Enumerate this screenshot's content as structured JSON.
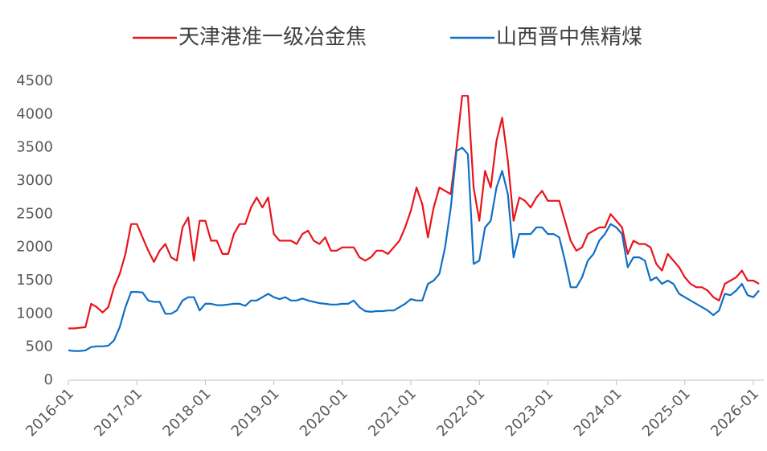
{
  "chart_data": {
    "type": "line",
    "x": [
      "2016-01",
      "2016-02",
      "2016-03",
      "2016-04",
      "2016-05",
      "2016-06",
      "2016-07",
      "2016-08",
      "2016-09",
      "2016-10",
      "2016-11",
      "2016-12",
      "2017-01",
      "2017-02",
      "2017-03",
      "2017-04",
      "2017-05",
      "2017-06",
      "2017-07",
      "2017-08",
      "2017-09",
      "2017-10",
      "2017-11",
      "2017-12",
      "2018-01",
      "2018-02",
      "2018-03",
      "2018-04",
      "2018-05",
      "2018-06",
      "2018-07",
      "2018-08",
      "2018-09",
      "2018-10",
      "2018-11",
      "2018-12",
      "2019-01",
      "2019-02",
      "2019-03",
      "2019-04",
      "2019-05",
      "2019-06",
      "2019-07",
      "2019-08",
      "2019-09",
      "2019-10",
      "2019-11",
      "2019-12",
      "2020-01",
      "2020-02",
      "2020-03",
      "2020-04",
      "2020-05",
      "2020-06",
      "2020-07",
      "2020-08",
      "2020-09",
      "2020-10",
      "2020-11",
      "2020-12",
      "2021-01",
      "2021-02",
      "2021-03",
      "2021-04",
      "2021-05",
      "2021-06",
      "2021-07",
      "2021-08",
      "2021-09",
      "2021-10",
      "2021-11",
      "2021-12",
      "2022-01",
      "2022-02",
      "2022-03",
      "2022-04",
      "2022-05",
      "2022-06",
      "2022-07",
      "2022-08",
      "2022-09",
      "2022-10",
      "2022-11",
      "2022-12",
      "2023-01",
      "2023-02",
      "2023-03",
      "2023-04",
      "2023-05",
      "2023-06",
      "2023-07",
      "2023-08",
      "2023-09",
      "2023-10",
      "2023-11",
      "2023-12",
      "2024-01",
      "2024-02",
      "2024-03",
      "2024-04",
      "2024-05",
      "2024-06",
      "2024-07",
      "2024-08",
      "2024-09",
      "2024-10",
      "2024-11",
      "2024-12",
      "2025-01",
      "2025-02",
      "2025-03",
      "2025-04",
      "2025-05",
      "2025-06",
      "2025-07",
      "2025-08",
      "2025-09",
      "2025-10",
      "2025-11",
      "2025-12",
      "2026-01",
      "2026-02"
    ],
    "xticks": [
      "2016-01",
      "2017-01",
      "2018-01",
      "2019-01",
      "2020-01",
      "2021-01",
      "2022-01",
      "2023-01",
      "2024-01",
      "2025-01",
      "2026-01"
    ],
    "series": [
      {
        "name": "天津港准一级冶金焦",
        "color": "#e8141b",
        "values": [
          780,
          780,
          790,
          800,
          1150,
          1100,
          1020,
          1100,
          1400,
          1600,
          1900,
          2350,
          2350,
          2150,
          1950,
          1780,
          1950,
          2050,
          1850,
          1800,
          2300,
          2450,
          1800,
          2400,
          2400,
          2100,
          2100,
          1900,
          1900,
          2200,
          2350,
          2350,
          2600,
          2750,
          2600,
          2750,
          2200,
          2100,
          2100,
          2100,
          2050,
          2200,
          2250,
          2100,
          2050,
          2150,
          1950,
          1950,
          2000,
          2000,
          2000,
          1850,
          1800,
          1850,
          1950,
          1950,
          1900,
          2000,
          2100,
          2300,
          2550,
          2900,
          2650,
          2150,
          2600,
          2900,
          2850,
          2800,
          3500,
          4280,
          4280,
          2900,
          2400,
          3150,
          2900,
          3600,
          3950,
          3300,
          2400,
          2750,
          2700,
          2600,
          2750,
          2850,
          2700,
          2700,
          2700,
          2400,
          2100,
          1950,
          2000,
          2200,
          2250,
          2300,
          2300,
          2500,
          2400,
          2300,
          1900,
          2100,
          2050,
          2050,
          2000,
          1750,
          1650,
          1900,
          1800,
          1700,
          1550,
          1450,
          1400,
          1400,
          1350,
          1250,
          1200,
          1450,
          1500,
          1550,
          1650,
          1500,
          1500,
          1450
        ]
      },
      {
        "name": "山西晋中焦精煤",
        "color": "#0f6fc6",
        "values": [
          450,
          440,
          440,
          450,
          500,
          510,
          510,
          520,
          600,
          800,
          1100,
          1330,
          1330,
          1320,
          1200,
          1180,
          1180,
          1000,
          1000,
          1050,
          1200,
          1250,
          1250,
          1050,
          1150,
          1150,
          1130,
          1130,
          1140,
          1150,
          1150,
          1120,
          1200,
          1200,
          1250,
          1300,
          1250,
          1220,
          1250,
          1200,
          1200,
          1230,
          1200,
          1180,
          1160,
          1150,
          1140,
          1140,
          1150,
          1150,
          1200,
          1100,
          1040,
          1030,
          1040,
          1040,
          1050,
          1050,
          1100,
          1150,
          1220,
          1200,
          1200,
          1450,
          1500,
          1600,
          2000,
          2600,
          3450,
          3500,
          3400,
          1750,
          1800,
          2300,
          2400,
          2900,
          3150,
          2800,
          1850,
          2200,
          2200,
          2200,
          2300,
          2300,
          2200,
          2200,
          2150,
          1800,
          1400,
          1400,
          1550,
          1800,
          1900,
          2100,
          2200,
          2350,
          2300,
          2200,
          1700,
          1850,
          1850,
          1800,
          1500,
          1550,
          1450,
          1500,
          1450,
          1300,
          1250,
          1200,
          1150,
          1100,
          1050,
          980,
          1050,
          1300,
          1280,
          1350,
          1450,
          1280,
          1250,
          1350
        ]
      }
    ],
    "ylim": [
      0,
      4500
    ],
    "yticks": [
      0,
      500,
      1000,
      1500,
      2000,
      2500,
      3000,
      3500,
      4000,
      4500
    ],
    "grid": false
  }
}
